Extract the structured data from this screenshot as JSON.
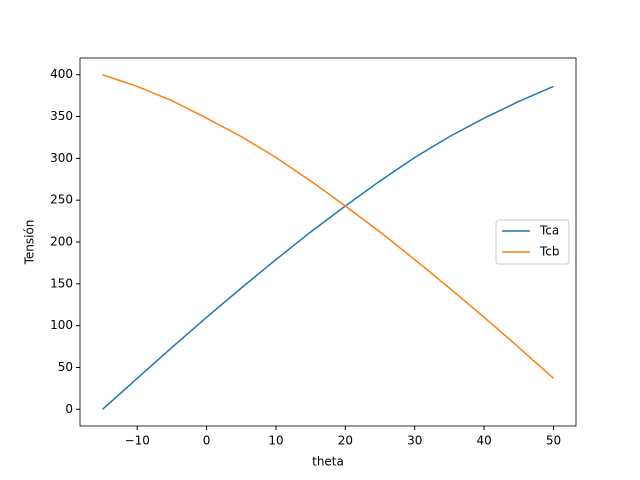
{
  "chart_data": {
    "type": "line",
    "xlabel": "theta",
    "ylabel": "Tensión",
    "x": [
      -15,
      -10,
      -5,
      0,
      5,
      10,
      15,
      20,
      25,
      30,
      35,
      40,
      45,
      50
    ],
    "series": [
      {
        "name": "Tca",
        "color": "#1f77b4",
        "values": [
          0,
          37,
          74,
          110,
          145,
          179,
          212,
          243,
          273,
          301,
          326,
          348,
          368,
          386
        ]
      },
      {
        "name": "Tcb",
        "color": "#ff7f0e",
        "values": [
          400,
          386,
          369,
          348,
          326,
          301,
          273,
          243,
          212,
          179,
          145,
          110,
          74,
          37
        ]
      }
    ],
    "xlim": [
      -18.25,
      53.25
    ],
    "xticks": [
      {
        "value": -10,
        "label": "−10"
      },
      0,
      10,
      20,
      30,
      40,
      50
    ],
    "ylim": [
      -20,
      420
    ],
    "yticks": [
      0,
      50,
      100,
      150,
      200,
      250,
      300,
      350,
      400
    ],
    "legend": "right"
  }
}
